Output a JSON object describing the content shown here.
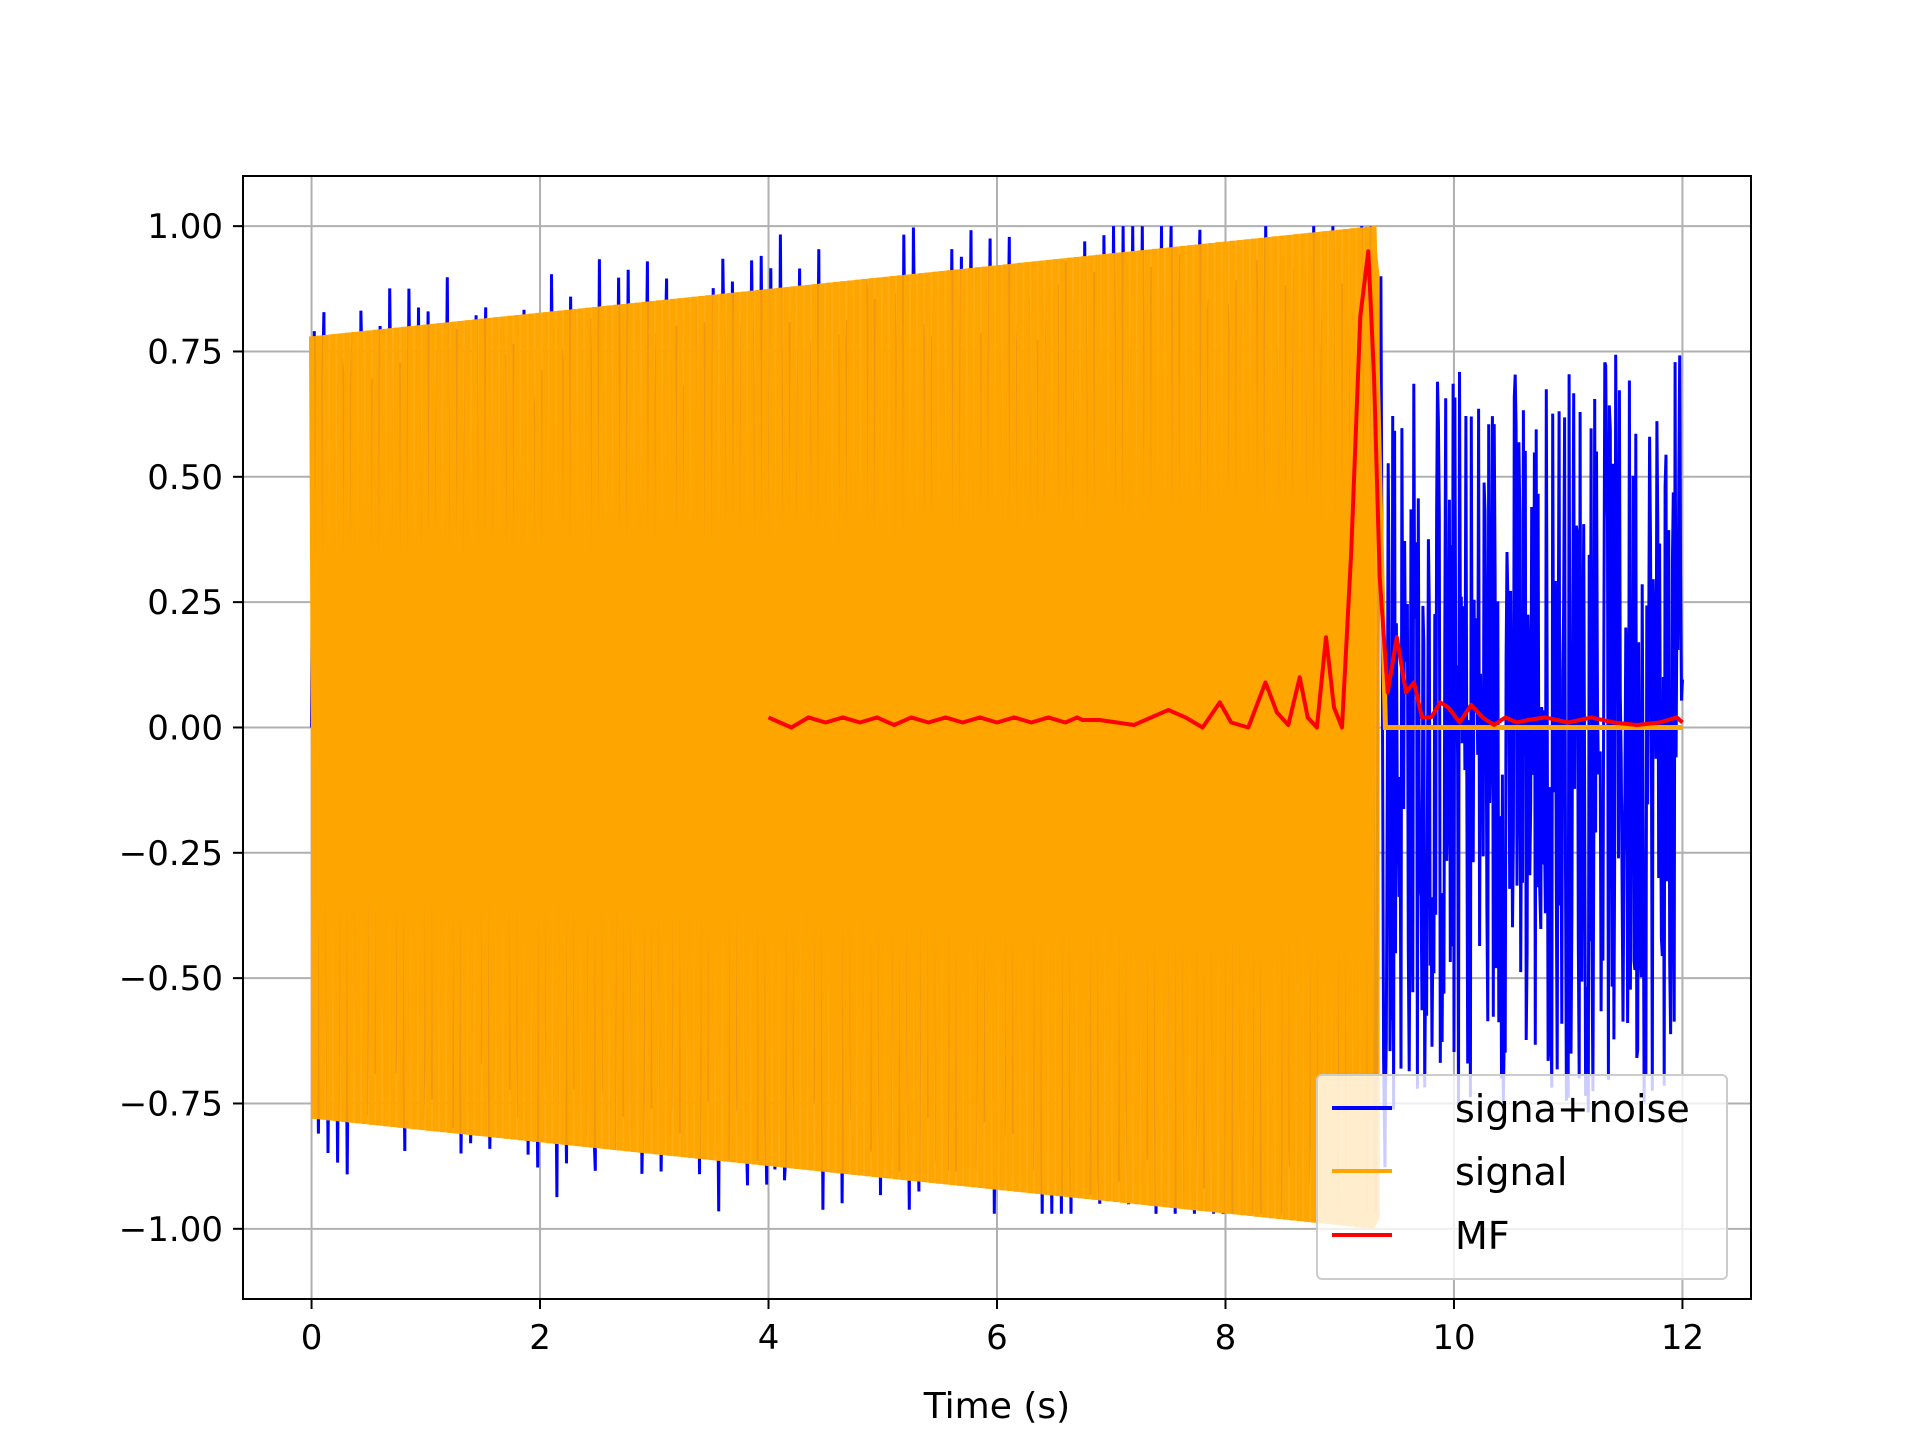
{
  "chart_data": {
    "type": "line",
    "title": "",
    "xlabel": "Time (s)",
    "ylabel": "",
    "xlim": [
      -0.6,
      12.6
    ],
    "ylim": [
      -1.14,
      1.1
    ],
    "grid": true,
    "legend_position": "lower right",
    "xticks": [
      0,
      2,
      4,
      6,
      8,
      10,
      12
    ],
    "xtick_labels": [
      "0",
      "2",
      "4",
      "6",
      "8",
      "10",
      "12"
    ],
    "yticks": [
      1.0,
      0.75,
      0.5,
      0.25,
      0.0,
      -0.25,
      -0.5,
      -0.75,
      -1.0
    ],
    "ytick_labels": [
      "1.00",
      "0.75",
      "0.50",
      "0.25",
      "0.00",
      "−0.25",
      "−0.50",
      "−0.75",
      "−1.00"
    ],
    "series": [
      {
        "name": "signa+noise",
        "color": "#0000ff",
        "description_fields": {
          "chirp_end": 9.4,
          "noise_end": 12.0,
          "noise_peak_values": [
            0.8,
            -0.95,
            0.95,
            -0.85,
            0.78
          ]
        }
      },
      {
        "name": "signal",
        "color": "#ffa500",
        "envelope_x": [
          0.0,
          9.3
        ],
        "envelope_y": [
          0.78,
          1.0
        ],
        "zero_after": [
          9.4,
          12.0
        ]
      },
      {
        "name": "MF",
        "color": "#ff0000",
        "x": [
          4.0,
          4.1,
          4.2,
          4.35,
          4.5,
          4.65,
          4.8,
          4.95,
          5.1,
          5.25,
          5.4,
          5.55,
          5.7,
          5.85,
          6.0,
          6.15,
          6.3,
          6.45,
          6.6,
          6.7,
          6.75,
          6.9,
          7.05,
          7.2,
          7.35,
          7.5,
          7.65,
          7.8,
          7.95,
          8.05,
          8.2,
          8.35,
          8.45,
          8.55,
          8.65,
          8.72,
          8.8,
          8.88,
          8.95,
          9.02,
          9.1,
          9.18,
          9.25,
          9.3,
          9.35,
          9.42,
          9.5,
          9.58,
          9.65,
          9.72,
          9.8,
          9.88,
          9.95,
          10.05,
          10.15,
          10.25,
          10.35,
          10.45,
          10.55,
          10.65,
          10.8,
          11.0,
          11.2,
          11.4,
          11.6,
          11.8,
          11.95,
          12.0
        ],
        "y": [
          0.02,
          0.01,
          0.0,
          0.02,
          0.01,
          0.02,
          0.01,
          0.02,
          0.005,
          0.02,
          0.01,
          0.02,
          0.01,
          0.02,
          0.01,
          0.02,
          0.01,
          0.02,
          0.01,
          0.02,
          0.015,
          0.015,
          0.01,
          0.005,
          0.02,
          0.035,
          0.02,
          0.0,
          0.05,
          0.01,
          0.0,
          0.09,
          0.03,
          0.005,
          0.1,
          0.02,
          0.0,
          0.18,
          0.04,
          0.0,
          0.35,
          0.82,
          0.95,
          0.7,
          0.3,
          0.07,
          0.18,
          0.07,
          0.09,
          0.02,
          0.02,
          0.05,
          0.04,
          0.01,
          0.045,
          0.02,
          0.005,
          0.02,
          0.01,
          0.015,
          0.02,
          0.01,
          0.02,
          0.01,
          0.005,
          0.01,
          0.02,
          0.01
        ]
      }
    ]
  }
}
